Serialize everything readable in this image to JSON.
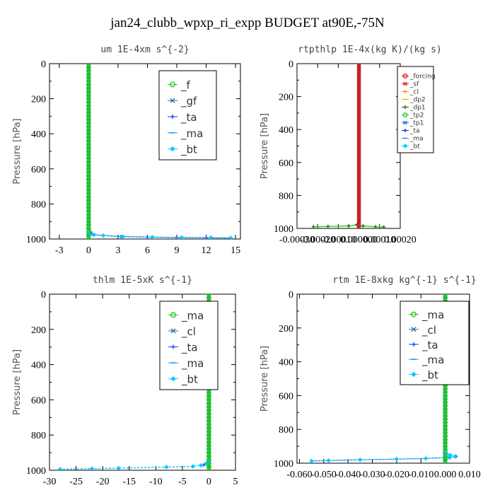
{
  "title": "jan24_clubb_wpxp_ri_expp  BUDGET at90E,-75N",
  "chart_data": [
    {
      "type": "line",
      "title": "um  1E-4xm s^{-2}",
      "ylabel": "Pressure [hPa]",
      "xlim": [
        -4,
        15.5
      ],
      "ylim": [
        1000,
        0
      ],
      "xticks": [
        "-3",
        "0",
        "3",
        "6",
        "9",
        "12",
        "15"
      ],
      "xtick_values": [
        -3,
        0,
        3,
        6,
        9,
        12,
        15
      ],
      "yticks": [
        "0",
        "200",
        "400",
        "600",
        "800",
        "1000"
      ],
      "legend_style": "big",
      "series": [
        {
          "name": "_f",
          "color": "#22cc22",
          "marker": "circle",
          "points": "zero"
        },
        {
          "name": "_gf",
          "color": "#2277aa",
          "marker": "x",
          "points": "zero"
        },
        {
          "name": "_ta",
          "color": "#2244ff",
          "marker": "plus",
          "points": [
            [
              0.2,
              960
            ],
            [
              0.3,
              970
            ],
            [
              0.6,
              976
            ],
            [
              1.5,
              980
            ],
            [
              3.3,
              986
            ],
            [
              6,
              989
            ],
            [
              9,
              991
            ],
            [
              12,
              992
            ],
            [
              14.5,
              994
            ]
          ]
        },
        {
          "name": "_ma",
          "color": "#1199ff",
          "marker": "dash",
          "points": "zero"
        },
        {
          "name": "_bt",
          "color": "#00ccff",
          "marker": "diamond",
          "points": [
            [
              0,
              960
            ],
            [
              0.1,
              970
            ],
            [
              0.5,
              976
            ],
            [
              1.5,
              980
            ],
            [
              3.5,
              986
            ],
            [
              6.5,
              989
            ],
            [
              9.5,
              991
            ],
            [
              12.5,
              992
            ],
            [
              14.5,
              994
            ]
          ]
        }
      ],
      "overlay": {
        "color": "#22cc22",
        "marker": "circle",
        "label": "_f"
      }
    },
    {
      "type": "line",
      "title": "rtpthlp  1E-4x(kg K)/(kg s)",
      "ylabel": "Pressure [hPa]",
      "xlim": [
        -0.0003,
        0.0002
      ],
      "ylim": [
        1000,
        0
      ],
      "xticks": [
        "-0.00030",
        "-0.00020",
        "-0.00010",
        "0.000000",
        "0.00010",
        "0.00020"
      ],
      "xtick_values": [
        -0.0003,
        -0.0002,
        -0.0001,
        0,
        0.0001,
        0.0002
      ],
      "yticks": [
        "0",
        "200",
        "400",
        "600",
        "800",
        "1000"
      ],
      "legend_style": "small",
      "series": [
        {
          "name": "_forcing",
          "color": "#dd2222",
          "marker": "circle"
        },
        {
          "name": "_sf",
          "color": "#dd2222",
          "marker": "x"
        },
        {
          "name": "_cl",
          "color": "#ff9900",
          "marker": "plus"
        },
        {
          "name": "_dp2",
          "color": "#cccc00",
          "marker": "dash"
        },
        {
          "name": "_dp1",
          "color": "#117711",
          "marker": "plus"
        },
        {
          "name": "_tp2",
          "color": "#33cc33",
          "marker": "circle"
        },
        {
          "name": "_tp1",
          "color": "#2277cc",
          "marker": "x"
        },
        {
          "name": "_ta",
          "color": "#2233dd",
          "marker": "plus"
        },
        {
          "name": "_ma",
          "color": "#1199ff",
          "marker": "dash"
        },
        {
          "name": "_bt",
          "color": "#00ccff",
          "marker": "diamond"
        }
      ],
      "tp2_points": [
        [
          -0.00022,
          990
        ],
        [
          -0.00015,
          988
        ],
        [
          -5e-05,
          985
        ],
        [
          -1e-05,
          978
        ],
        [
          2e-05,
          985
        ],
        [
          8e-05,
          990
        ],
        [
          0.00012,
          992
        ]
      ],
      "overlay": {
        "color": "#cc2222",
        "marker": "circle",
        "label": "_forcing"
      }
    },
    {
      "type": "line",
      "title": "thlm  1E-5xK s^{-1}",
      "ylabel": "Pressure [hPa]",
      "xlim": [
        -30,
        5
      ],
      "ylim": [
        1000,
        0
      ],
      "xticks": [
        "-30",
        "-25",
        "-20",
        "-15",
        "-10",
        "-5",
        "0",
        "5"
      ],
      "xtick_values": [
        -30,
        -25,
        -20,
        -15,
        -10,
        -5,
        0,
        5
      ],
      "yticks": [
        "0",
        "200",
        "400",
        "600",
        "800",
        "1000"
      ],
      "legend_style": "big",
      "series": [
        {
          "name": "_ma",
          "color": "#22cc22",
          "marker": "circle"
        },
        {
          "name": "_cl",
          "color": "#2277aa",
          "marker": "x"
        },
        {
          "name": "_ta",
          "color": "#2244ff",
          "marker": "plus",
          "points": [
            [
              0,
              950
            ],
            [
              -0.5,
              960
            ],
            [
              -1,
              970
            ],
            [
              -3,
              978
            ],
            [
              -8,
              982
            ],
            [
              -17,
              988
            ],
            [
              -22,
              991
            ],
            [
              -28,
              994
            ]
          ]
        },
        {
          "name": "_ma",
          "color": "#1199ff",
          "marker": "dash"
        },
        {
          "name": "_bt",
          "color": "#00ccff",
          "marker": "diamond",
          "points": [
            [
              0,
              950
            ],
            [
              -0.5,
              962
            ],
            [
              -1.5,
              972
            ],
            [
              -3,
              978
            ],
            [
              -8,
              982
            ],
            [
              -17,
              988
            ],
            [
              -22,
              991
            ],
            [
              -28,
              994
            ]
          ]
        }
      ],
      "overlay": {
        "color": "#22cc22",
        "marker": "circle",
        "label": "_ma"
      }
    },
    {
      "type": "line",
      "title": "rtm  1E-8xkg kg^{-1} s^{-1}",
      "ylabel": "Pressure [hPa]",
      "xlim": [
        -0.061,
        0.01
      ],
      "ylim": [
        1000,
        0
      ],
      "xticks": [
        "-0.060",
        "-0.050",
        "-0.040",
        "-0.030",
        "-0.020",
        "-0.010",
        "0.000",
        "0.010"
      ],
      "xtick_values": [
        -0.06,
        -0.05,
        -0.04,
        -0.03,
        -0.02,
        -0.01,
        0,
        0.01
      ],
      "yticks": [
        "0",
        "200",
        "400",
        "600",
        "800",
        "1000"
      ],
      "legend_style": "big",
      "series": [
        {
          "name": "_ma",
          "color": "#22cc22",
          "marker": "circle"
        },
        {
          "name": "_cl",
          "color": "#2277aa",
          "marker": "x"
        },
        {
          "name": "_ta",
          "color": "#2244ff",
          "marker": "plus",
          "points": [
            [
              0,
              930
            ],
            [
              0.0005,
              945
            ],
            [
              0.002,
              952
            ],
            [
              0.0045,
              960
            ],
            [
              0.002,
              966
            ],
            [
              -0.008,
              972
            ],
            [
              -0.02,
              976
            ],
            [
              -0.035,
              980
            ],
            [
              -0.048,
              984
            ],
            [
              -0.055,
              987
            ]
          ]
        },
        {
          "name": "_ma",
          "color": "#1199ff",
          "marker": "dash"
        },
        {
          "name": "_bt",
          "color": "#00ccff",
          "marker": "diamond",
          "points": [
            [
              0,
              930
            ],
            [
              0.0005,
              945
            ],
            [
              0.002,
              952
            ],
            [
              0.004,
              960
            ],
            [
              0.0015,
              966
            ],
            [
              -0.008,
              972
            ],
            [
              -0.02,
              976
            ],
            [
              -0.035,
              980
            ],
            [
              -0.048,
              984
            ],
            [
              -0.055,
              987
            ]
          ]
        }
      ],
      "overlay": {
        "color": "#22cc22",
        "marker": "circle",
        "label": "_ma"
      }
    }
  ]
}
